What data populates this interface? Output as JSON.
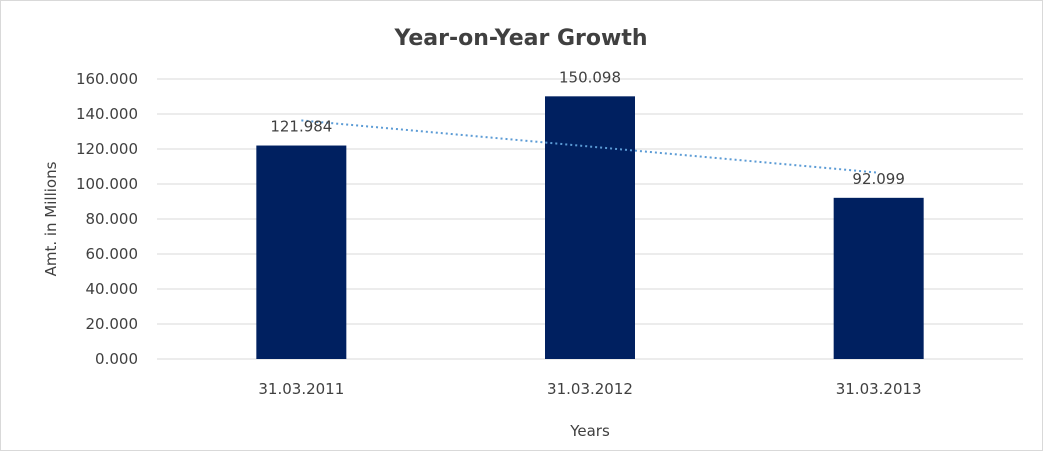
{
  "chart_data": {
    "type": "bar",
    "title": "Year-on-Year Growth",
    "xlabel": "Years",
    "ylabel": "Amt. in Millions",
    "categories": [
      "31.03.2011",
      "31.03.2012",
      "31.03.2013"
    ],
    "values": [
      121.984,
      150.098,
      92.099
    ],
    "data_labels": [
      "121.984",
      "150.098",
      "92.099"
    ],
    "yticks": [
      "0.000",
      "20.000",
      "40.000",
      "60.000",
      "80.000",
      "100.000",
      "120.000",
      "140.000",
      "160.000"
    ],
    "ylim": [
      0,
      160
    ],
    "grid": true,
    "trendline": "linear, dotted",
    "colors": {
      "bar": "#002060",
      "trendline": "#5B9BD5",
      "grid": "#d9d9d9"
    }
  }
}
